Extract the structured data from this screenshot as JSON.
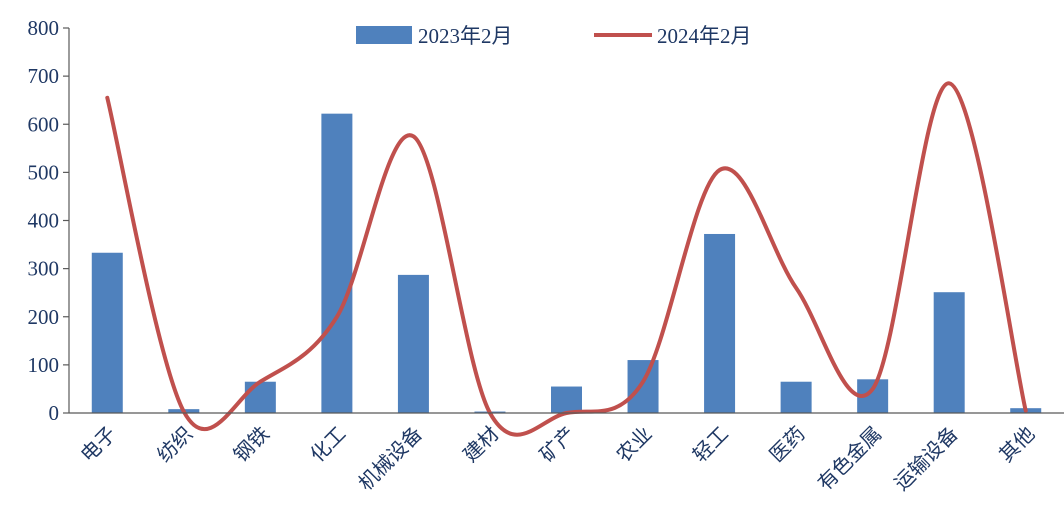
{
  "chart_data": {
    "type": "bar",
    "categories": [
      "电子",
      "纺织",
      "钢铁",
      "化工",
      "机械设备",
      "建材",
      "矿产",
      "农业",
      "轻工",
      "医药",
      "有色金属",
      "运输设备",
      "其他"
    ],
    "series": [
      {
        "name": "2023年2月",
        "type": "bar",
        "values": [
          333,
          8,
          65,
          622,
          287,
          3,
          55,
          110,
          372,
          65,
          70,
          251,
          10
        ]
      },
      {
        "name": "2024年2月",
        "type": "line",
        "smooth": true,
        "values": [
          655,
          3,
          65,
          200,
          575,
          0,
          0,
          65,
          505,
          260,
          50,
          685,
          5
        ]
      }
    ],
    "y_ticks": [
      "0",
      "100",
      "200",
      "300",
      "400",
      "500",
      "600",
      "700",
      "800"
    ],
    "ylim": [
      0,
      800
    ],
    "grid": false,
    "legend": "top",
    "colors": {
      "bar": "#4f81bd",
      "line": "#c0504d",
      "axis": "#595959",
      "text": "#1f3864"
    }
  }
}
